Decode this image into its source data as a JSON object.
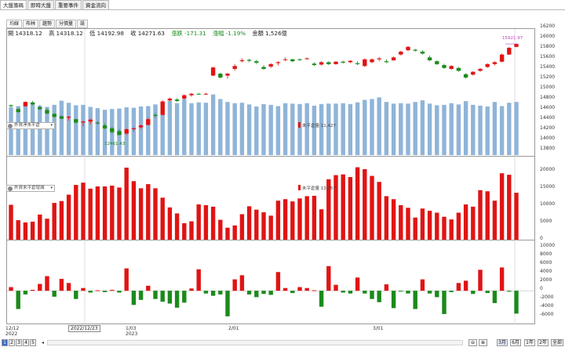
{
  "top_tabs": [
    "大盤籌碼",
    "即時大盤",
    "重要事件",
    "資金流向"
  ],
  "sub_tabs": [
    "均線",
    "布林",
    "趨勢",
    "分價量",
    "設"
  ],
  "info": {
    "open": "開 14318.12",
    "high": "高 14318.12",
    "low": "低 14192.98",
    "close": "收 14271.63",
    "change": "漲跌 -171.31",
    "pct": "漲幅 -1.19%",
    "amount": "金額 1,526億"
  },
  "price_panel": {
    "select_label": "外資淨未平倉",
    "legend": "未平倉量 11,427",
    "low_marker": "12461.43",
    "high_marker": "15921.97",
    "y_ticks": [
      "16200",
      "16000",
      "15800",
      "15600",
      "15400",
      "15200",
      "15000",
      "14800",
      "14600",
      "14400",
      "14200",
      "14000",
      "13800"
    ]
  },
  "oi_panel": {
    "select_label": "外資未平倉增減",
    "legend": "未平倉量 13,157",
    "y_ticks": [
      "20000",
      "15000",
      "10000",
      "5000",
      "0"
    ]
  },
  "diff_panel": {
    "y_ticks": [
      "10000",
      "8000",
      "6000",
      "4000",
      "2000",
      "0",
      "-2000",
      "-4000",
      "-6000"
    ]
  },
  "x_labels": {
    "d1": "12/12",
    "d1y": "2022",
    "cursor": "2022/12/23",
    "d2": "1/03",
    "d2y": "2023",
    "d3": "2/01",
    "d4": "3/01"
  },
  "pager": [
    "1",
    "2",
    "3",
    "4",
    "5"
  ],
  "zoom": [
    "3月",
    "6月",
    "1年",
    "2年",
    "全部"
  ],
  "colors": {
    "up": "#e01414",
    "down": "#1b8a1b",
    "vol": "#8fb4d8",
    "accent": "#c03cc0"
  },
  "chart_data": [
    {
      "type": "candlestick",
      "title": "",
      "ylim": [
        13600,
        16250
      ],
      "candles": [
        [
          14640,
          14660,
          14600,
          14620
        ],
        [
          14560,
          14580,
          14480,
          14500
        ],
        [
          14620,
          14720,
          14610,
          14710
        ],
        [
          14700,
          14730,
          14640,
          14660
        ],
        [
          14600,
          14640,
          14540,
          14560
        ],
        [
          14540,
          14580,
          14450,
          14470
        ],
        [
          14460,
          14480,
          14380,
          14400
        ],
        [
          14410,
          14430,
          14350,
          14360
        ],
        [
          14380,
          14420,
          14320,
          14400
        ],
        [
          14350,
          14360,
          14260,
          14280
        ],
        [
          14280,
          14320,
          14200,
          14300
        ],
        [
          14300,
          14360,
          14240,
          14340
        ],
        [
          14280,
          14310,
          14240,
          14260
        ],
        [
          14220,
          14260,
          14140,
          14160
        ],
        [
          14160,
          14190,
          14050,
          14080
        ],
        [
          14100,
          14140,
          14010,
          14020
        ],
        [
          14050,
          14160,
          14020,
          14140
        ],
        [
          14140,
          14180,
          14090,
          14160
        ],
        [
          14180,
          14240,
          14150,
          14220
        ],
        [
          14230,
          14380,
          14220,
          14350
        ],
        [
          14440,
          14480,
          14380,
          14420
        ],
        [
          14440,
          14750,
          14430,
          14720
        ],
        [
          14740,
          14800,
          14720,
          14780
        ],
        [
          14760,
          14790,
          14710,
          14730
        ],
        [
          14780,
          14870,
          14760,
          14850
        ],
        [
          14850,
          14900,
          14820,
          14880
        ],
        [
          14880,
          14900,
          14860,
          14870
        ],
        [
          14880,
          14900,
          14860,
          14880
        ],
        [
          15260,
          15440,
          15250,
          15430
        ],
        [
          15300,
          15320,
          15200,
          15220
        ],
        [
          15260,
          15320,
          15200,
          15300
        ],
        [
          15400,
          15500,
          15360,
          15460
        ],
        [
          15560,
          15620,
          15540,
          15580
        ],
        [
          15590,
          15610,
          15540,
          15570
        ],
        [
          15560,
          15590,
          15500,
          15530
        ],
        [
          15440,
          15480,
          15380,
          15400
        ],
        [
          15450,
          15520,
          15420,
          15500
        ],
        [
          15520,
          15560,
          15470,
          15540
        ],
        [
          15590,
          15640,
          15560,
          15600
        ],
        [
          15600,
          15610,
          15540,
          15560
        ],
        [
          15600,
          15620,
          15570,
          15590
        ],
        [
          15610,
          15640,
          15590,
          15620
        ],
        [
          15510,
          15540,
          15460,
          15480
        ],
        [
          15490,
          15560,
          15470,
          15540
        ],
        [
          15540,
          15560,
          15480,
          15500
        ],
        [
          15500,
          15560,
          15490,
          15550
        ],
        [
          15550,
          15570,
          15510,
          15530
        ],
        [
          15540,
          15580,
          15520,
          15570
        ],
        [
          15520,
          15560,
          15480,
          15500
        ],
        [
          15460,
          15620,
          15440,
          15600
        ],
        [
          15540,
          15620,
          15520,
          15600
        ],
        [
          15600,
          15650,
          15560,
          15620
        ],
        [
          15560,
          15600,
          15520,
          15540
        ],
        [
          15580,
          15660,
          15570,
          15640
        ],
        [
          15700,
          15780,
          15680,
          15760
        ],
        [
          15790,
          15880,
          15770,
          15860
        ],
        [
          15800,
          15820,
          15760,
          15780
        ],
        [
          15760,
          15790,
          15700,
          15720
        ],
        [
          15640,
          15680,
          15560,
          15580
        ],
        [
          15560,
          15580,
          15480,
          15500
        ],
        [
          15480,
          15510,
          15400,
          15420
        ],
        [
          15400,
          15480,
          15380,
          15460
        ],
        [
          15420,
          15440,
          15340,
          15360
        ],
        [
          15290,
          15310,
          15200,
          15220
        ],
        [
          15280,
          15350,
          15260,
          15340
        ],
        [
          15360,
          15420,
          15340,
          15400
        ],
        [
          15440,
          15520,
          15420,
          15500
        ],
        [
          15500,
          15560,
          15470,
          15540
        ],
        [
          15550,
          15720,
          15540,
          15700
        ],
        [
          15700,
          15860,
          15690,
          15840
        ],
        [
          15860,
          15930,
          15850,
          15920
        ]
      ],
      "volume": [
        11500,
        11800,
        12200,
        12600,
        11900,
        11600,
        12100,
        13100,
        12600,
        12000,
        12100,
        11600,
        11300,
        10900,
        11100,
        11200,
        11500,
        11400,
        11700,
        11800,
        12200,
        12400,
        13000,
        12500,
        13500,
        12500,
        12700,
        12600,
        14600,
        13500,
        12800,
        12500,
        12600,
        12200,
        11700,
        12300,
        12100,
        11800,
        12500,
        12400,
        12300,
        12500,
        11900,
        12300,
        12400,
        12400,
        12500,
        12300,
        12700,
        13300,
        13500,
        13900,
        12800,
        12400,
        12500,
        12400,
        12800,
        13200,
        12400,
        12000,
        12100,
        12500,
        12200,
        13000,
        12100,
        11900,
        11700,
        12800,
        11800,
        12600,
        12800
      ]
    },
    {
      "type": "bar",
      "title": "",
      "ylim": [
        0,
        21500
      ],
      "values": [
        9300,
        5200,
        4600,
        4800,
        6700,
        5600,
        9800,
        10300,
        12000,
        14600,
        15200,
        13600,
        14200,
        14200,
        14400,
        13900,
        19200,
        15600,
        13700,
        14800,
        13700,
        11200,
        8600,
        7000,
        4400,
        4900,
        9400,
        9200,
        8800,
        5300,
        3200,
        3800,
        6800,
        8900,
        8000,
        7300,
        6400,
        10400,
        10800,
        10200,
        11000,
        11600,
        11700,
        8100,
        16100,
        17200,
        17400,
        16700,
        19300,
        18800,
        17000,
        15400,
        11600,
        10800,
        9200,
        8500,
        5900,
        8300,
        7700,
        7200,
        6100,
        5400,
        7200,
        9400,
        8800,
        13200,
        12900,
        10400,
        17700,
        17300,
        12500
      ]
    },
    {
      "type": "bar",
      "title": "",
      "ylim": [
        -7000,
        10500
      ],
      "values": [
        800,
        -4000,
        -800,
        200,
        1500,
        3200,
        -1300,
        2600,
        1700,
        -1800,
        600,
        -400,
        100,
        -300,
        200,
        -400,
        4900,
        -3100,
        -2000,
        1100,
        -1800,
        -2400,
        -2800,
        -3700,
        -2600,
        500,
        4700,
        -600,
        -1100,
        -800,
        -5600,
        2500,
        3400,
        -800,
        -1400,
        -700,
        -900,
        4100,
        600,
        -500,
        800,
        600,
        100,
        -3500,
        5400,
        1300,
        -400,
        -600,
        2900,
        -600,
        -1800,
        -2500,
        1400,
        -3800,
        -100,
        -600,
        -4000,
        2500,
        -600,
        -1400,
        -5100,
        -300,
        1700,
        2200,
        -700,
        4600,
        -500,
        -2700,
        5100,
        -200,
        -5000
      ]
    }
  ]
}
